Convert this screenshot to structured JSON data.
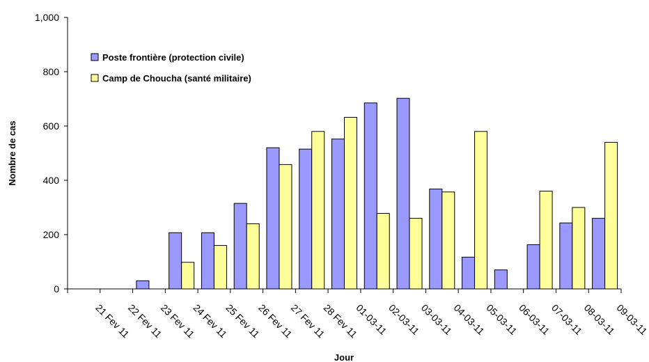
{
  "chart_data": {
    "type": "bar",
    "categories": [
      "21 Fev 11",
      "22 Fev 11",
      "23 Fev 11",
      "24 Fev 11",
      "25 Fev 11",
      "26 Fev 11",
      "27 Fev 11",
      "28 Fev 11",
      "01-03-11",
      "02-03-11",
      "03-03-11",
      "04-03-11",
      "05-03-11",
      "06-03-11",
      "07-03-11",
      "08-03-11",
      "09-03-11"
    ],
    "series": [
      {
        "name": "Poste frontière (protection civile)",
        "color": "#9999ff",
        "values": [
          0,
          0,
          30,
          207,
          207,
          315,
          520,
          515,
          552,
          685,
          702,
          368,
          117,
          70,
          163,
          243,
          260
        ]
      },
      {
        "name": "Camp de Choucha (santé militaire)",
        "color": "#ffff99",
        "values": [
          0,
          0,
          0,
          98,
          160,
          240,
          458,
          580,
          632,
          278,
          260,
          357,
          580,
          0,
          360,
          300,
          540
        ]
      }
    ],
    "xlabel": "Jour",
    "ylabel": "Nombre de cas",
    "ylim": [
      0,
      1000
    ],
    "yticks": [
      "0",
      "200",
      "400",
      "600",
      "800",
      "1,000"
    ],
    "yticks_values": [
      0,
      200,
      400,
      600,
      800,
      1000
    ],
    "legend_position": "top-left",
    "grid": false
  }
}
